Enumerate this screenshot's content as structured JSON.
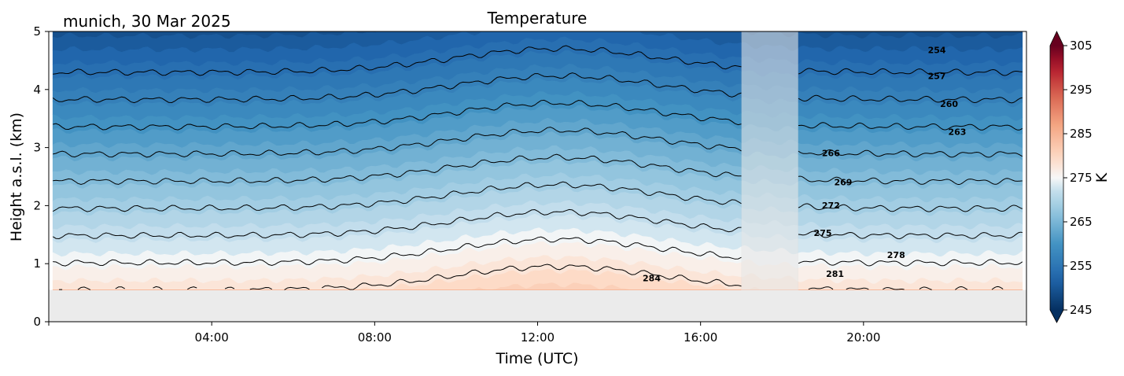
{
  "chart_data": {
    "type": "heatmap",
    "title": "Temperature",
    "subtitle": "munich, 30 Mar 2025",
    "xlabel": "Time (UTC)",
    "ylabel": "Height a.s.l. (km)",
    "xlim_hours": [
      0,
      24
    ],
    "ylim": [
      0,
      5
    ],
    "x_ticks": [
      "04:00",
      "08:00",
      "12:00",
      "16:00",
      "20:00"
    ],
    "x_tick_hours": [
      4,
      8,
      12,
      16,
      20
    ],
    "y_ticks": [
      "0",
      "1",
      "2",
      "3",
      "4",
      "5"
    ],
    "y_tick_values": [
      0,
      1,
      2,
      3,
      4,
      5
    ],
    "data_bottom_km": 0.55,
    "data_start_hour": 0.1,
    "data_end_hour": 23.9,
    "gap_hours": [
      17.0,
      18.4
    ],
    "colorbar": {
      "label": "K",
      "min": 245,
      "max": 305,
      "ticks": [
        "245",
        "255",
        "265",
        "275",
        "285",
        "295",
        "305"
      ],
      "tick_values": [
        245,
        255,
        265,
        275,
        285,
        295,
        305
      ],
      "colormap": "RdBu_r",
      "extend": "both"
    },
    "surface_temperature_K": 281.5,
    "lapse_rate_K_per_km": 6.4,
    "contour_levels": [
      254,
      257,
      260,
      263,
      266,
      269,
      272,
      275,
      278,
      281,
      284
    ],
    "contour_labels": [
      {
        "text": "254",
        "x_hour": 21.8,
        "y_km": 4.63
      },
      {
        "text": "257",
        "x_hour": 21.8,
        "y_km": 4.18
      },
      {
        "text": "260",
        "x_hour": 22.1,
        "y_km": 3.7
      },
      {
        "text": "263",
        "x_hour": 22.3,
        "y_km": 3.22
      },
      {
        "text": "266",
        "x_hour": 19.2,
        "y_km": 2.85
      },
      {
        "text": "269",
        "x_hour": 19.5,
        "y_km": 2.35
      },
      {
        "text": "272",
        "x_hour": 19.2,
        "y_km": 1.95
      },
      {
        "text": "275",
        "x_hour": 19.0,
        "y_km": 1.48
      },
      {
        "text": "278",
        "x_hour": 20.8,
        "y_km": 1.1
      },
      {
        "text": "281",
        "x_hour": 19.3,
        "y_km": 0.77
      },
      {
        "text": "284",
        "x_hour": 14.8,
        "y_km": 0.7
      }
    ],
    "colors": {
      "below_data_fill": "#ebebeb",
      "gap_overlay": "#c8c8c8",
      "contour_line": "#000000"
    }
  }
}
